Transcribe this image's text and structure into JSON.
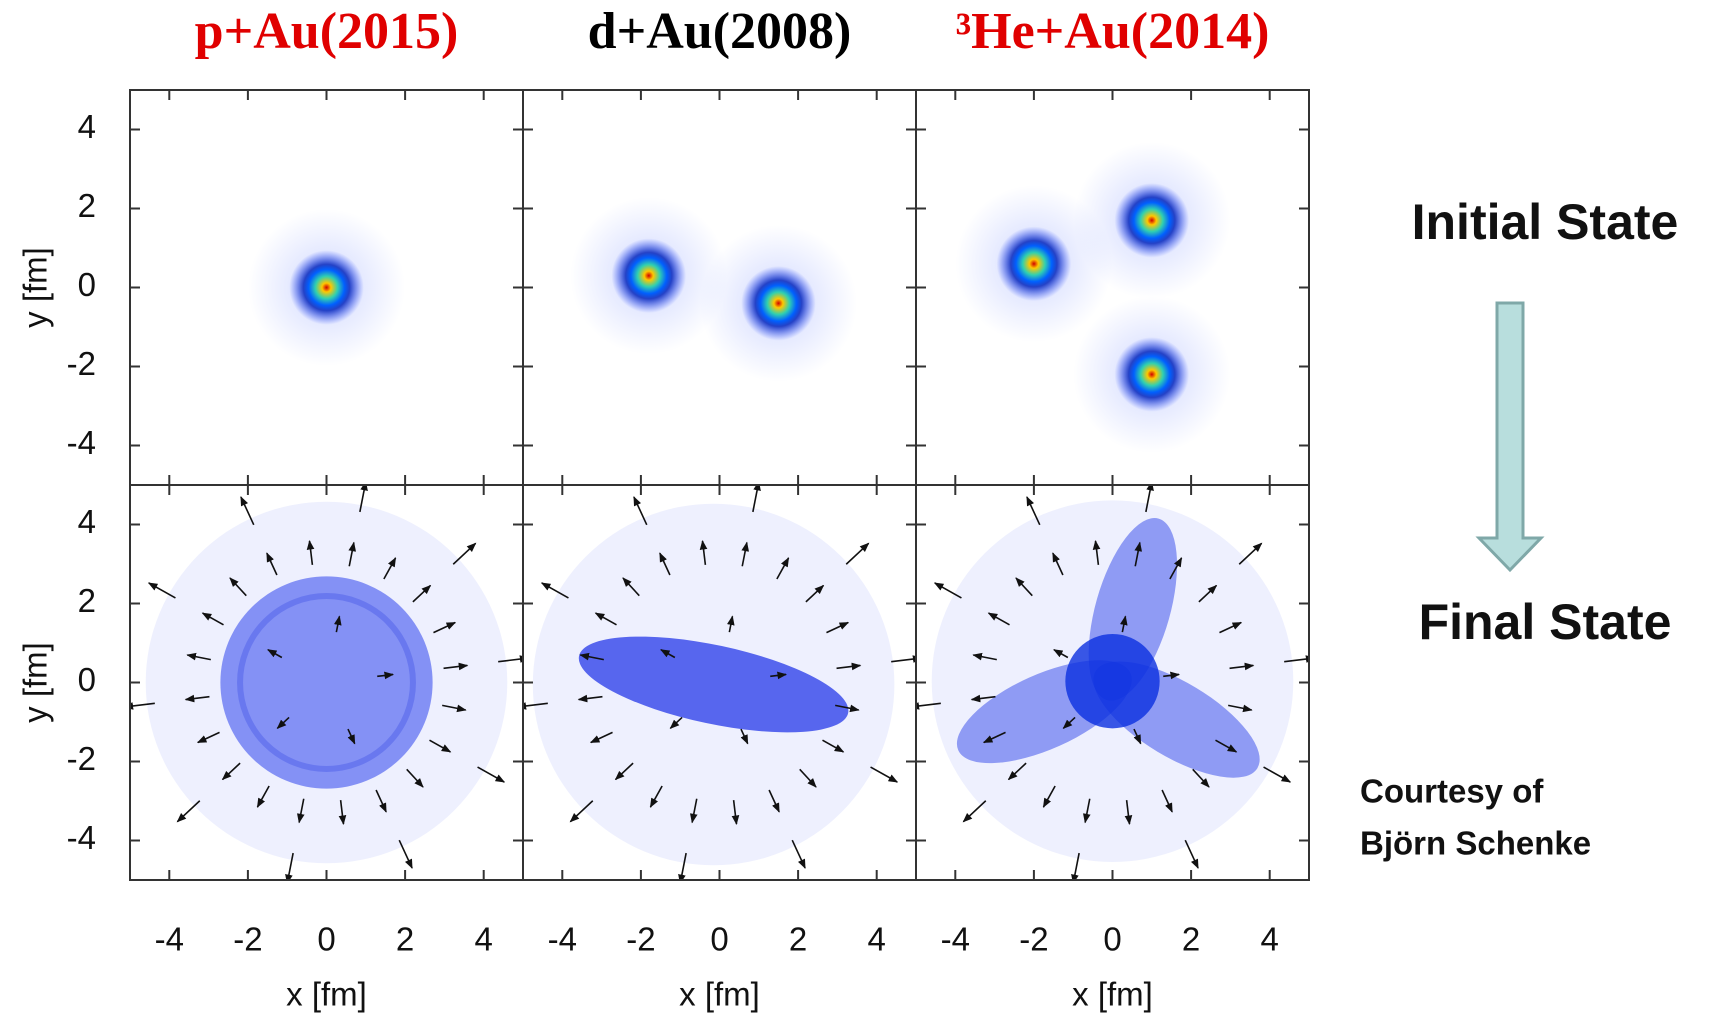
{
  "chart_data": [
    {
      "type": "scatter",
      "title": "p+Au(2015)",
      "title_color": "#e00000",
      "xlabel": "x [fm]",
      "ylabel": "y [fm]",
      "x": [
        0
      ],
      "y": [
        0
      ],
      "xlim": [
        -5,
        5
      ],
      "ylim": [
        -5,
        5
      ],
      "xticks": [
        -4,
        -2,
        0,
        2,
        4
      ],
      "yticks": [
        -4,
        -2,
        0,
        2,
        4
      ]
    },
    {
      "type": "scatter",
      "title": "d+Au(2008)",
      "title_color": "#000000",
      "xlabel": "x [fm]",
      "x": [
        -1.8,
        1.5
      ],
      "y": [
        0.3,
        -0.4
      ],
      "xlim": [
        -5,
        5
      ],
      "ylim": [
        -5,
        5
      ],
      "xticks": [
        -4,
        -2,
        0,
        2,
        4
      ]
    },
    {
      "type": "scatter",
      "title": "³He+Au(2014)",
      "title_color": "#e00000",
      "xlabel": "x [fm]",
      "x": [
        -2,
        1,
        1
      ],
      "y": [
        0.6,
        1.7,
        -2.2
      ],
      "xlim": [
        -5,
        5
      ],
      "ylim": [
        -5,
        5
      ],
      "xticks": [
        -4,
        -2,
        0,
        2,
        4
      ]
    }
  ],
  "side": {
    "initial": "Initial State",
    "final": "Final State",
    "credit": [
      "Courtesy of",
      "Björn Schenke"
    ]
  }
}
